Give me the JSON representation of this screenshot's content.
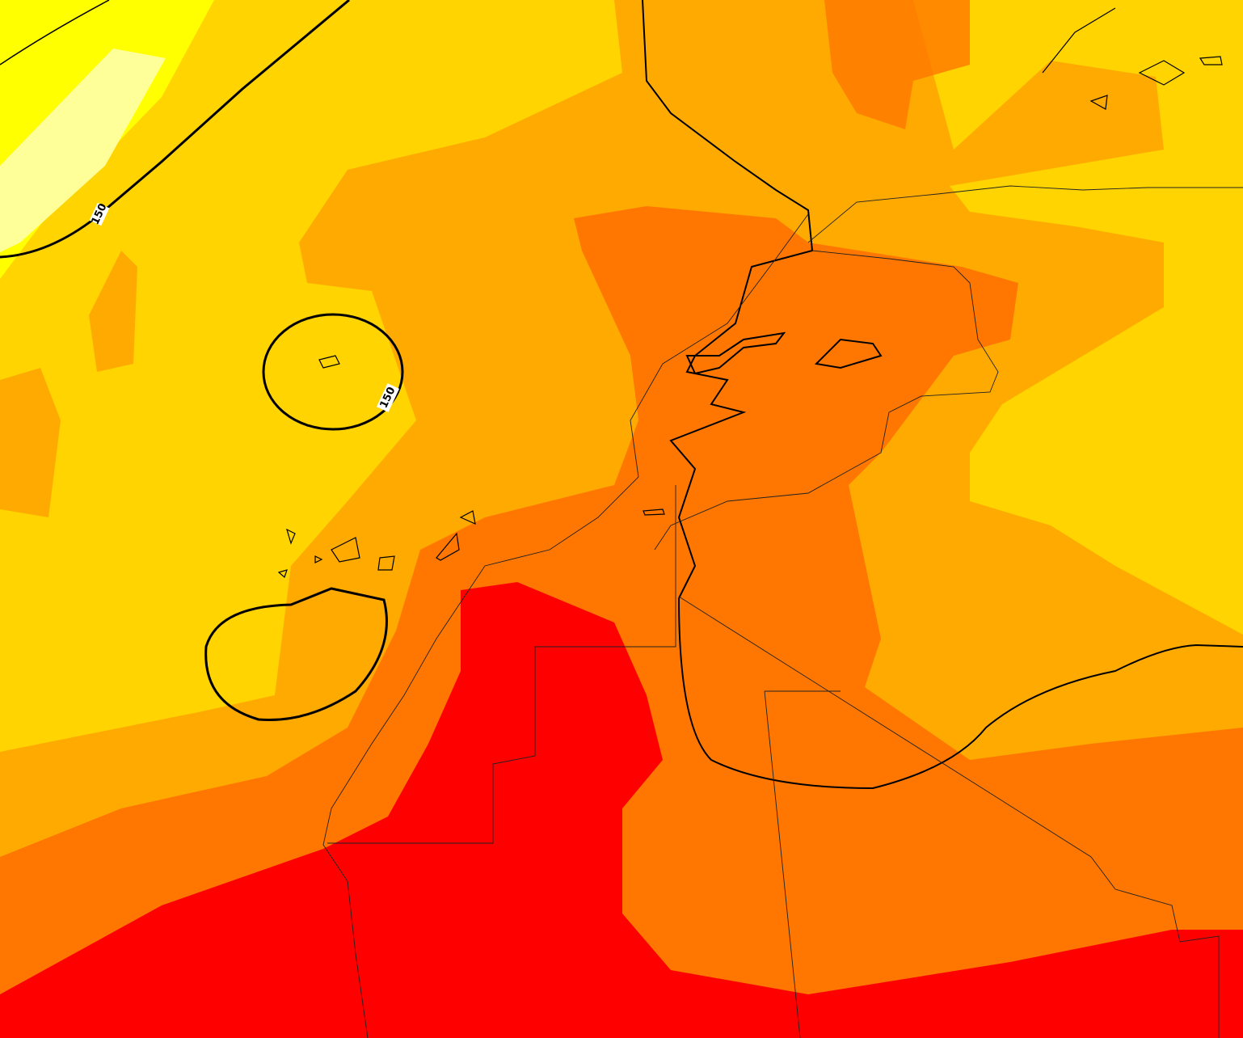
{
  "contour_labels": [
    "150",
    "150"
  ]
}
